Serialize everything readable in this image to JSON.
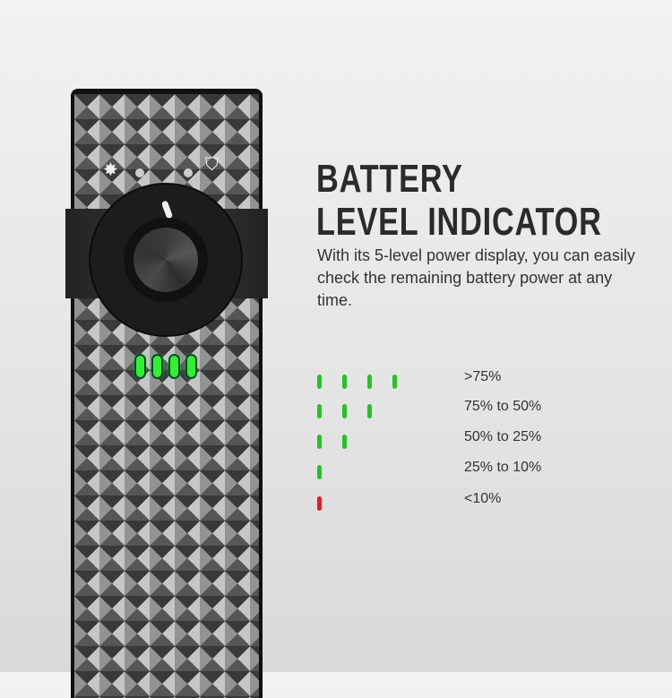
{
  "heading": {
    "line1": "BATTERY",
    "line2": "LEVEL INDICATOR"
  },
  "description": "With its 5-level power display, you can easily check the remaining battery power at any time.",
  "device": {
    "lit_leds": 4,
    "led_color": "#2ef22e"
  },
  "levels": [
    {
      "label": ">75%",
      "bars": 4,
      "color": "#22c322"
    },
    {
      "label": "75% to 50%",
      "bars": 3,
      "color": "#22c322"
    },
    {
      "label": "50% to 25%",
      "bars": 2,
      "color": "#22c322"
    },
    {
      "label": "25% to 10%",
      "bars": 1,
      "color": "#22c322"
    },
    {
      "label": "<10%",
      "bars": 1,
      "color": "#e81a1a"
    }
  ]
}
